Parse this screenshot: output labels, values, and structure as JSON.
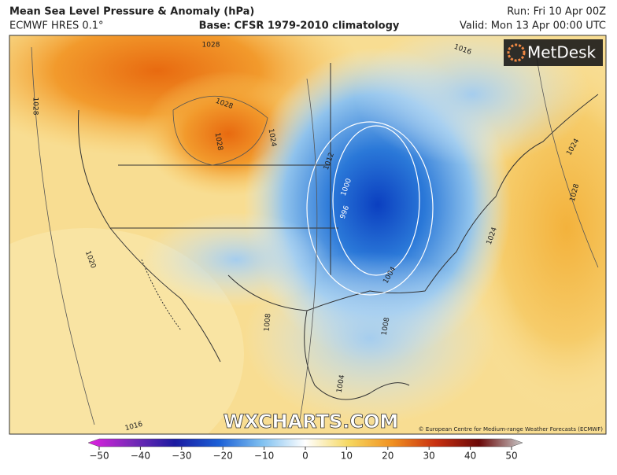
{
  "header": {
    "title": "Mean Sea Level Pressure & Anomaly (hPa)",
    "model": "ECMWF HRES 0.1°",
    "base": "Base: CFSR 1979-2010 climatology",
    "run": "Run: Fri 10 Apr 00Z",
    "valid": "Valid: Mon 13 Apr 00:00 UTC"
  },
  "map": {
    "logo": "MetDesk",
    "watermark": "WXCHARTS.COM",
    "credit": "© European Centre for Medium-range Weather Forecasts (ECMWF)",
    "contour_labels": [
      "1028",
      "1028",
      "1028",
      "1024",
      "1028",
      "1020",
      "1016",
      "1012",
      "1000",
      "996",
      "1004",
      "1008",
      "1008",
      "1004",
      "1024",
      "1028",
      "1016",
      "1024"
    ]
  },
  "colorbar": {
    "ticks": [
      "−50",
      "−40",
      "−30",
      "−20",
      "−10",
      "0",
      "10",
      "20",
      "30",
      "40",
      "50"
    ]
  }
}
